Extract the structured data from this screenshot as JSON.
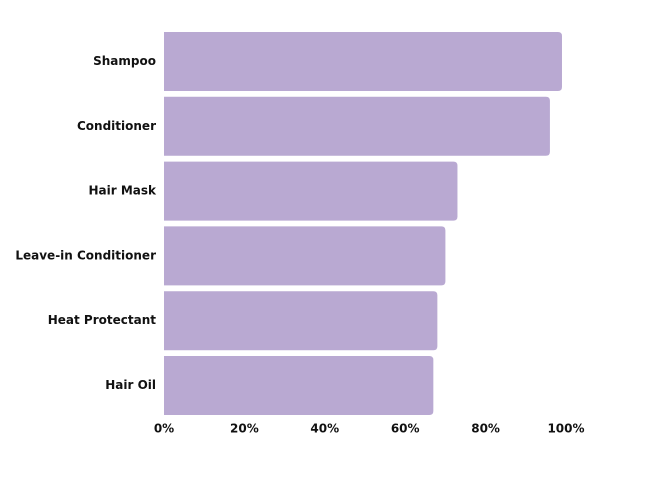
{
  "chart_data": {
    "type": "hbar",
    "categories": [
      "Shampoo",
      "Conditioner",
      "Hair Mask",
      "Leave-in Conditioner",
      "Heat Protectant",
      "Hair Oil"
    ],
    "values": [
      99,
      96,
      73,
      70,
      68,
      67
    ],
    "color": "#b9a9d2",
    "xlim": [
      0,
      100
    ],
    "xticks": [
      {
        "value": 0,
        "label": "0%"
      },
      {
        "value": 20,
        "label": "20%"
      },
      {
        "value": 40,
        "label": "40%"
      },
      {
        "value": 60,
        "label": "60%"
      },
      {
        "value": 80,
        "label": "80%"
      },
      {
        "value": 100,
        "label": "100%"
      }
    ],
    "grid": false
  }
}
